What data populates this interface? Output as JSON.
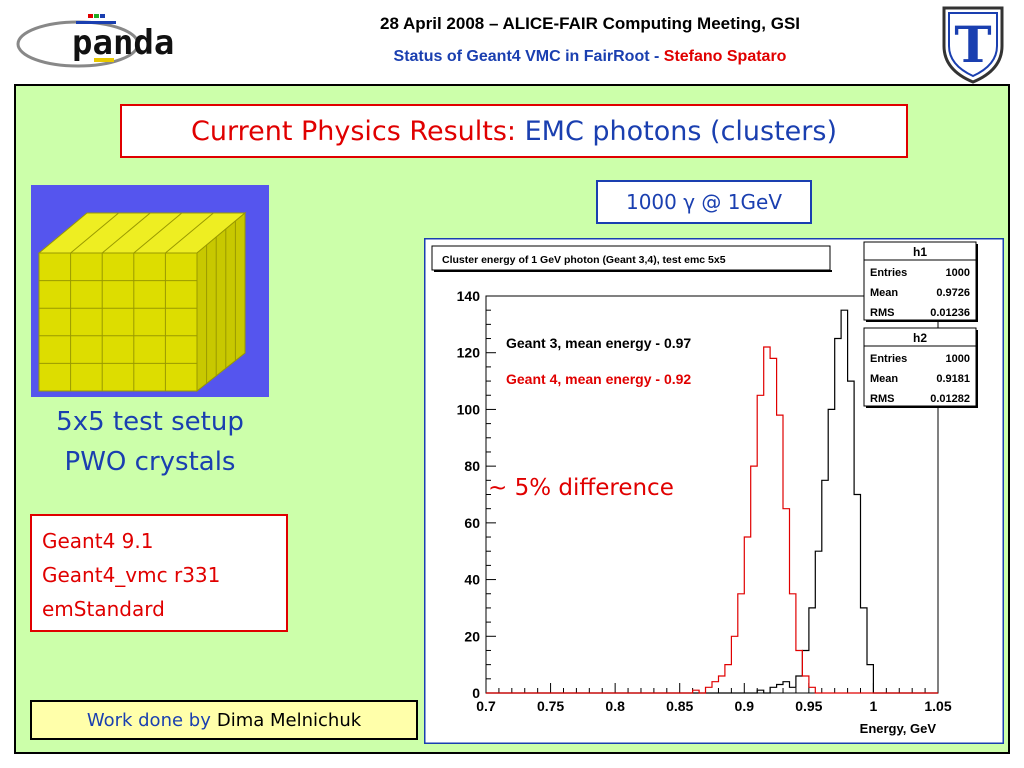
{
  "header": {
    "line1": "28 April 2008 – ALICE-FAIR Computing Meeting, GSI",
    "line2_prefix": "Status of Geant4 VMC in FairRoot - ",
    "line2_author": "Stefano Spataro"
  },
  "logo": {
    "text": "panda",
    "icon": "panda-logo"
  },
  "shield": {
    "letter": "T",
    "icon": "university-shield-logo"
  },
  "title": {
    "part1": "Current Physics Results: ",
    "part2": "EMC photons (clusters)"
  },
  "beam_label": "1000 γ @ 1GeV",
  "setup_caption": {
    "line1": "5x5 test setup",
    "line2": "PWO crystals"
  },
  "software": {
    "line1": "Geant4 9.1",
    "line2": "Geant4_vmc r331",
    "line3": "emStandard"
  },
  "credit": {
    "prefix": "Work done by",
    "name": "Dima Melnichuk"
  },
  "colors": {
    "panel": "#ccffaa",
    "red": "#e00000",
    "blue": "#1a3fb0",
    "crystal": "#dddd00",
    "crystal_bg": "#5555ee"
  },
  "chart_data": {
    "type": "histogram",
    "title": "Cluster energy of 1 GeV photon (Geant 3,4), test emc 5x5",
    "xlabel": "Energy, GeV",
    "ylabel": "",
    "xlim": [
      0.7,
      1.05
    ],
    "ylim": [
      0,
      140
    ],
    "x_ticks": [
      "0.7",
      "0.75",
      "0.8",
      "0.85",
      "0.9",
      "0.95",
      "1",
      "1.05"
    ],
    "y_ticks": [
      "0",
      "20",
      "40",
      "60",
      "80",
      "100",
      "120",
      "140"
    ],
    "annotation": "~ 5% difference",
    "series": [
      {
        "name": "Geant 3, mean energy - 0.97",
        "color": "#000000",
        "bins": [
          [
            0.91,
            1
          ],
          [
            0.92,
            2
          ],
          [
            0.925,
            3
          ],
          [
            0.93,
            4
          ],
          [
            0.935,
            2
          ],
          [
            0.94,
            6
          ],
          [
            0.945,
            15
          ],
          [
            0.95,
            30
          ],
          [
            0.955,
            50
          ],
          [
            0.96,
            75
          ],
          [
            0.965,
            100
          ],
          [
            0.97,
            125
          ],
          [
            0.975,
            135
          ],
          [
            0.98,
            110
          ],
          [
            0.985,
            70
          ],
          [
            0.99,
            30
          ],
          [
            0.995,
            10
          ]
        ]
      },
      {
        "name": "Geant 4, mean energy - 0.92",
        "color": "#e00000",
        "bins": [
          [
            0.86,
            1
          ],
          [
            0.87,
            2
          ],
          [
            0.875,
            4
          ],
          [
            0.88,
            6
          ],
          [
            0.885,
            10
          ],
          [
            0.89,
            20
          ],
          [
            0.895,
            35
          ],
          [
            0.9,
            55
          ],
          [
            0.905,
            80
          ],
          [
            0.91,
            105
          ],
          [
            0.915,
            122
          ],
          [
            0.92,
            118
          ],
          [
            0.925,
            98
          ],
          [
            0.93,
            65
          ],
          [
            0.935,
            35
          ],
          [
            0.94,
            15
          ],
          [
            0.945,
            6
          ],
          [
            0.95,
            2
          ]
        ]
      }
    ],
    "stats": [
      {
        "name": "h1",
        "entries_label": "Entries",
        "entries": "1000",
        "mean_label": "Mean",
        "mean": "0.9726",
        "rms_label": "RMS",
        "rms": "0.01236"
      },
      {
        "name": "h2",
        "entries_label": "Entries",
        "entries": "1000",
        "mean_label": "Mean",
        "mean": "0.9181",
        "rms_label": "RMS",
        "rms": "0.01282"
      }
    ]
  }
}
